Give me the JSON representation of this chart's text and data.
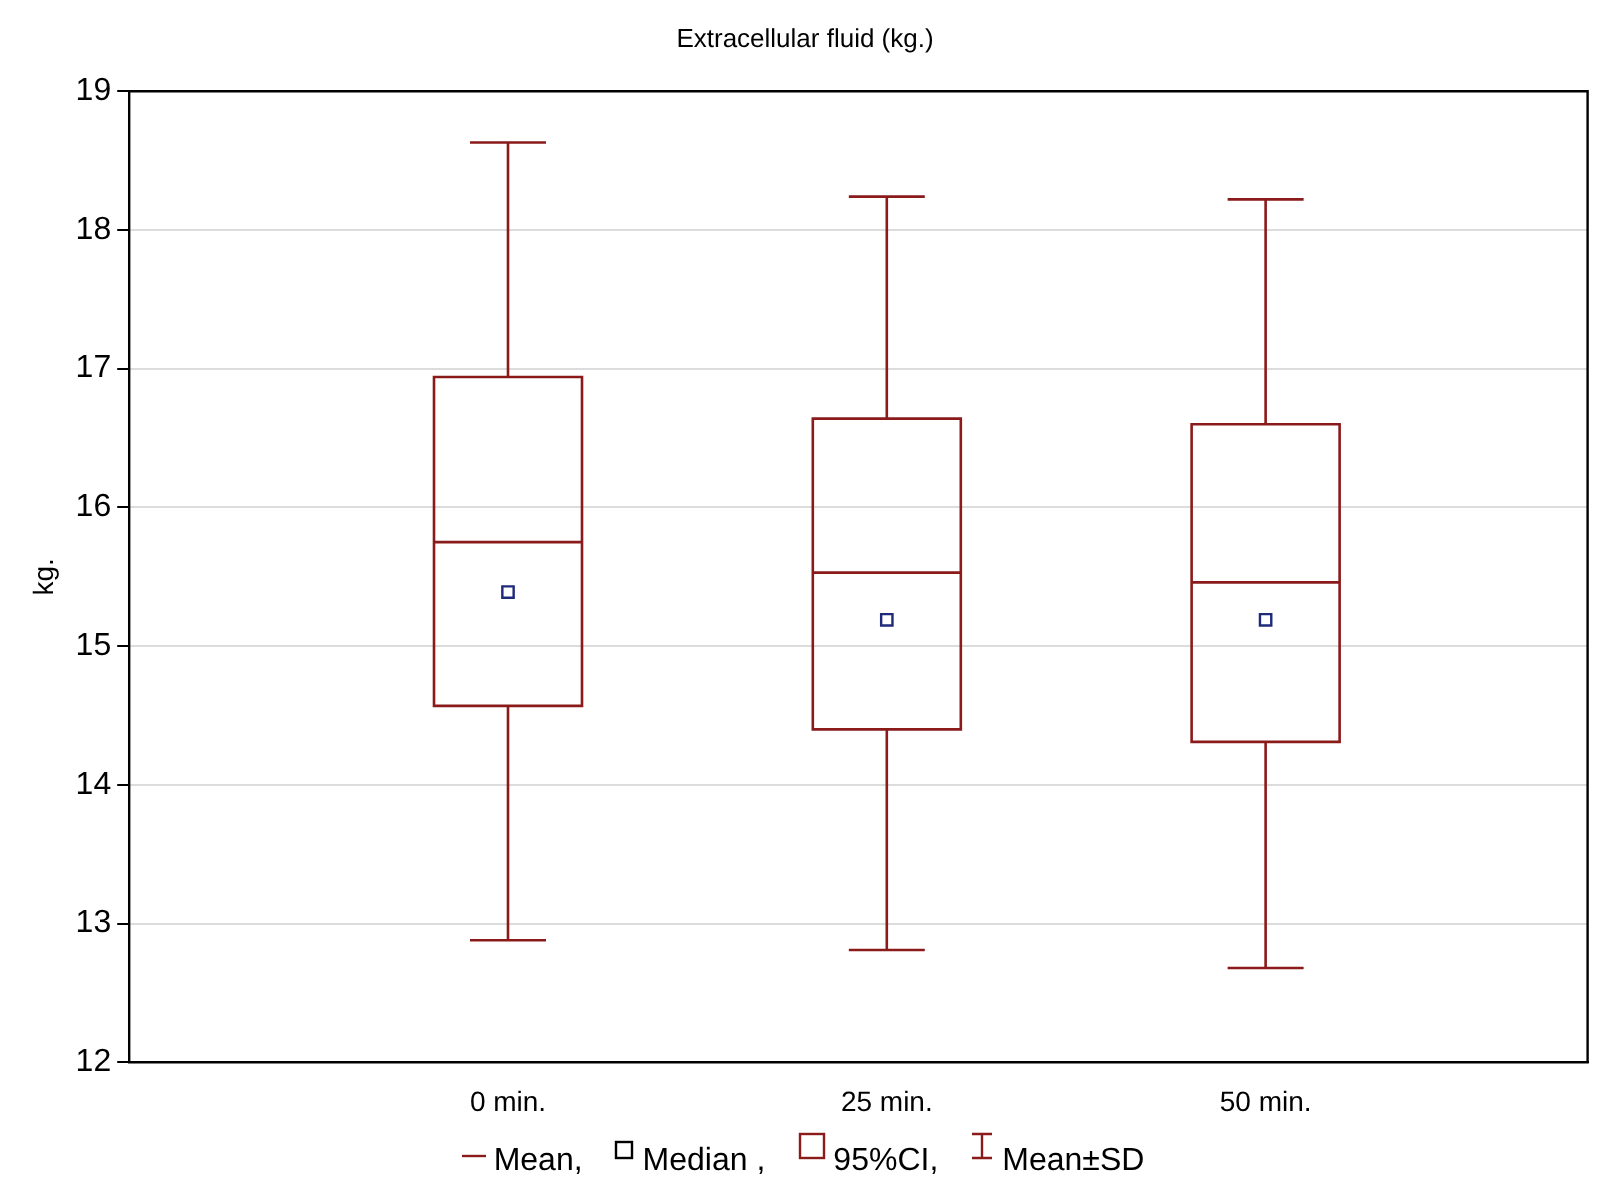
{
  "chart_data": {
    "type": "box",
    "title": "Extracellular fluid (kg.)",
    "ylabel": "kg.",
    "categories": [
      "0 min.",
      "25 min.",
      "50 min."
    ],
    "series": [
      {
        "color": "#8b1a1a",
        "boxes": [
          {
            "low": 12.88,
            "q1": 14.57,
            "mean": 15.75,
            "median": 15.39,
            "q3": 16.94,
            "high": 18.63
          },
          {
            "low": 12.81,
            "q1": 14.4,
            "mean": 15.53,
            "median": 15.19,
            "q3": 16.64,
            "high": 18.24
          },
          {
            "low": 12.68,
            "q1": 14.31,
            "mean": 15.46,
            "median": 15.19,
            "q3": 16.6,
            "high": 18.22
          }
        ]
      }
    ],
    "ylim": [
      12,
      19
    ],
    "yticks": [
      12,
      13,
      14,
      15,
      16,
      17,
      18,
      19
    ],
    "grid": "y",
    "marker": "square",
    "annotations": [
      "Mean,",
      "Median ,",
      "95%CI,",
      "Mean±SD"
    ]
  }
}
